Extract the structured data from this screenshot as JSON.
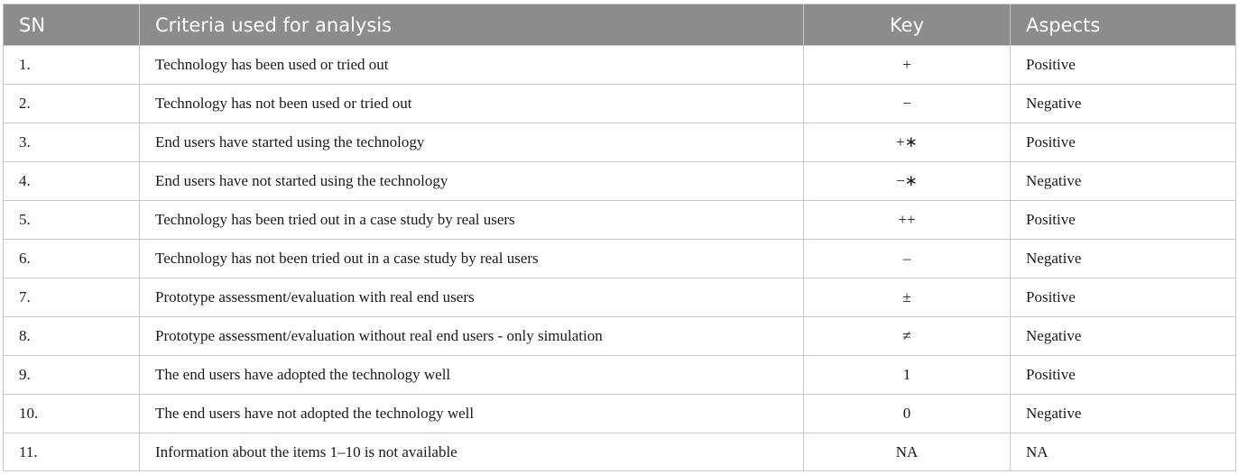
{
  "table": {
    "headers": {
      "sn": "SN",
      "criteria": "Criteria used for analysis",
      "key": "Key",
      "aspects": "Aspects"
    },
    "rows": [
      {
        "sn": "1.",
        "criteria": "Technology has been used or tried out",
        "key": "+",
        "aspects": "Positive"
      },
      {
        "sn": "2.",
        "criteria": "Technology has not been used or tried out",
        "key": "−",
        "aspects": "Negative"
      },
      {
        "sn": "3.",
        "criteria": "End users have started using the technology",
        "key": "+∗",
        "aspects": "Positive"
      },
      {
        "sn": "4.",
        "criteria": "End users have not started using the technology",
        "key": "−∗",
        "aspects": "Negative"
      },
      {
        "sn": "5.",
        "criteria": "Technology has been tried out in a case study by real users",
        "key": "++",
        "aspects": "Positive"
      },
      {
        "sn": "6.",
        "criteria": "Technology has not been tried out in a case study by real users",
        "key": "–",
        "aspects": "Negative"
      },
      {
        "sn": "7.",
        "criteria": "Prototype assessment/evaluation with real end users",
        "key": "±",
        "aspects": "Positive"
      },
      {
        "sn": "8.",
        "criteria": "Prototype assessment/evaluation without real end users - only simulation",
        "key": "≠",
        "aspects": "Negative"
      },
      {
        "sn": "9.",
        "criteria": "The end users have adopted the technology well",
        "key": "1",
        "aspects": "Positive"
      },
      {
        "sn": "10.",
        "criteria": "The end users have not adopted the technology well",
        "key": "0",
        "aspects": "Negative"
      },
      {
        "sn": "11.",
        "criteria": "Information about the items 1–10 is not available",
        "key": "NA",
        "aspects": "NA"
      }
    ]
  }
}
